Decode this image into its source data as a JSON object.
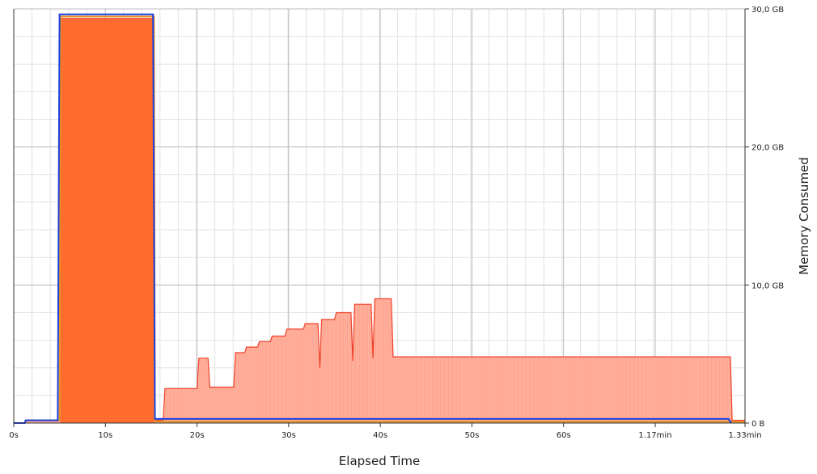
{
  "chart_data": {
    "type": "area",
    "xlabel": "Elapsed Time",
    "ylabel": "Memory Consumed",
    "x_unit": "s",
    "y_unit": "GB",
    "xlim": [
      0,
      79.8
    ],
    "ylim": [
      0,
      30
    ],
    "grid": true,
    "y_axis_side": "right",
    "x_ticks": [
      {
        "value": 0,
        "label": "0s"
      },
      {
        "value": 10,
        "label": "10s"
      },
      {
        "value": 20,
        "label": "20s"
      },
      {
        "value": 30,
        "label": "30s"
      },
      {
        "value": 40,
        "label": "40s"
      },
      {
        "value": 50,
        "label": "50s"
      },
      {
        "value": 60,
        "label": "60s"
      },
      {
        "value": 70,
        "label": "1.17min"
      },
      {
        "value": 79.8,
        "label": "1.33min"
      }
    ],
    "y_ticks": [
      {
        "value": 0,
        "label": "0 B"
      },
      {
        "value": 10,
        "label": "10,0 GB"
      },
      {
        "value": 20,
        "label": "20,0 GB"
      },
      {
        "value": 30,
        "label": "30,0 GB"
      }
    ],
    "series": [
      {
        "color": "#ff6a2a",
        "fill": "#ffb0a0",
        "style": "area",
        "points": [
          [
            0,
            0
          ],
          [
            1.2,
            0
          ],
          [
            1.3,
            0.2
          ],
          [
            5.0,
            0.2
          ],
          [
            5.1,
            29.3
          ],
          [
            15.3,
            29.3
          ],
          [
            15.4,
            0.2
          ],
          [
            16.3,
            0.2
          ],
          [
            16.5,
            2.5
          ],
          [
            20.0,
            2.5
          ],
          [
            20.2,
            4.7
          ],
          [
            21.2,
            4.7
          ],
          [
            21.4,
            2.6
          ],
          [
            24.0,
            2.6
          ],
          [
            24.2,
            5.1
          ],
          [
            25.2,
            5.1
          ],
          [
            25.4,
            5.5
          ],
          [
            26.6,
            5.5
          ],
          [
            26.8,
            5.9
          ],
          [
            28.0,
            5.9
          ],
          [
            28.2,
            6.3
          ],
          [
            29.6,
            6.3
          ],
          [
            29.8,
            6.8
          ],
          [
            31.6,
            6.8
          ],
          [
            31.8,
            7.2
          ],
          [
            33.2,
            7.2
          ],
          [
            33.4,
            4.0
          ],
          [
            33.6,
            7.5
          ],
          [
            35.0,
            7.5
          ],
          [
            35.2,
            8.0
          ],
          [
            36.8,
            8.0
          ],
          [
            37.0,
            4.5
          ],
          [
            37.2,
            8.6
          ],
          [
            39.0,
            8.6
          ],
          [
            39.2,
            4.7
          ],
          [
            39.4,
            9.0
          ],
          [
            41.2,
            9.0
          ],
          [
            41.4,
            4.8
          ],
          [
            78.2,
            4.8
          ],
          [
            78.4,
            0.2
          ],
          [
            79.8,
            0.2
          ]
        ]
      },
      {
        "color": "#e89020",
        "style": "line",
        "points": [
          [
            0,
            0
          ],
          [
            1.2,
            0
          ],
          [
            1.3,
            0.2
          ],
          [
            5.0,
            0.2
          ],
          [
            5.1,
            29.45
          ],
          [
            15.3,
            29.45
          ],
          [
            15.4,
            0.1
          ],
          [
            79.8,
            0.1
          ]
        ]
      },
      {
        "color": "#1a3fe0",
        "style": "line",
        "points": [
          [
            0,
            0
          ],
          [
            1.2,
            0
          ],
          [
            1.3,
            0.2
          ],
          [
            4.8,
            0.2
          ],
          [
            5.0,
            29.6
          ],
          [
            15.2,
            29.6
          ],
          [
            15.4,
            0.3
          ],
          [
            78.0,
            0.3
          ],
          [
            78.3,
            0
          ]
        ]
      }
    ]
  }
}
